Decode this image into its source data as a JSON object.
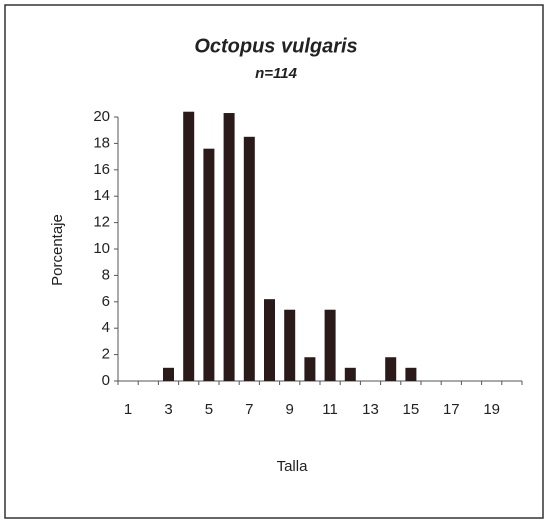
{
  "chart_data": {
    "type": "bar",
    "title": "Octopus vulgaris",
    "subtitle": "n=114",
    "x_label": "Talla",
    "y_label": "Porcentaje",
    "categories": [
      1,
      null,
      3,
      null,
      5,
      null,
      7,
      null,
      9,
      null,
      11,
      null,
      13,
      null,
      15,
      null,
      17,
      null,
      19,
      null
    ],
    "values": [
      0,
      0,
      1,
      20.4,
      17.6,
      20.3,
      18.5,
      6.2,
      5.4,
      1.8,
      5.4,
      1,
      0,
      1.8,
      1,
      0,
      0,
      0,
      0,
      0
    ],
    "color": "#2a1a1a",
    "ylim": [
      0,
      20
    ],
    "yticks": [
      0,
      2,
      4,
      6,
      8,
      10,
      12,
      14,
      16,
      18,
      20
    ],
    "grid": false
  }
}
